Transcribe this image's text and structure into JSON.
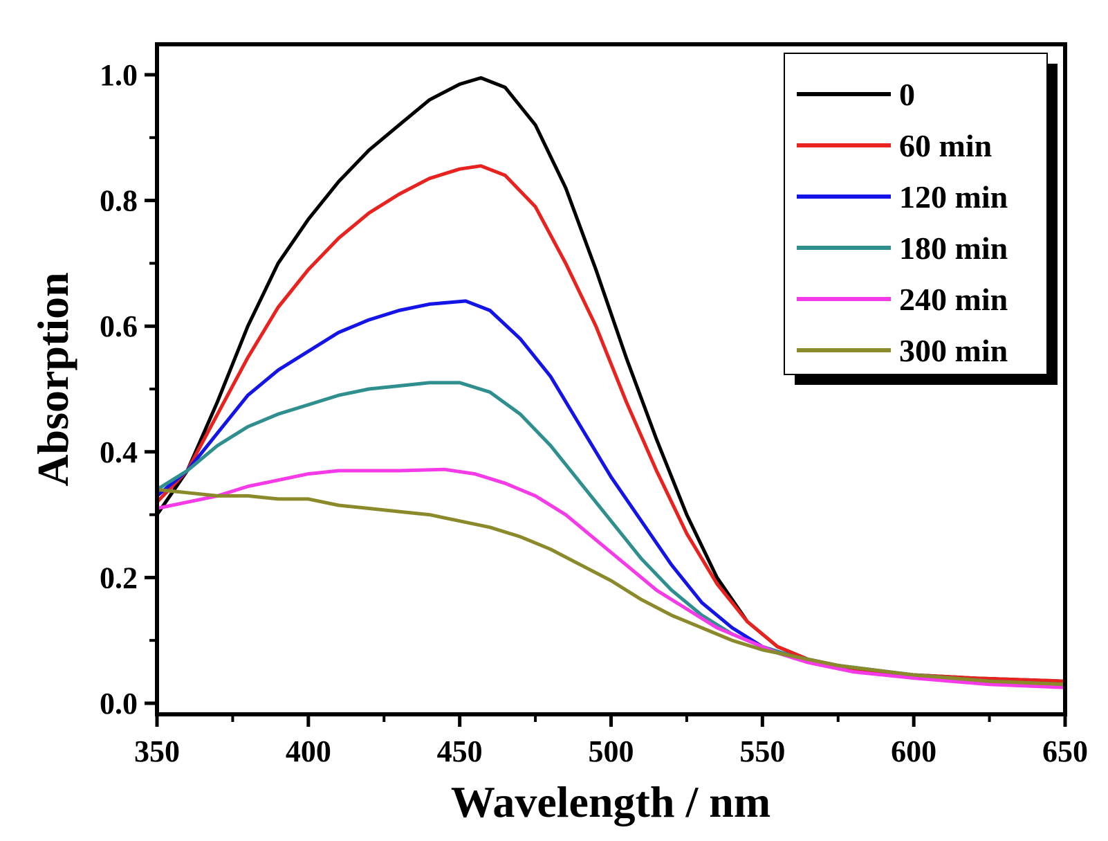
{
  "chart_data": {
    "type": "line",
    "title": "",
    "xlabel": "Wavelength / nm",
    "ylabel": "Absorption",
    "xlim": [
      350,
      650
    ],
    "ylim": [
      0.0,
      1.0
    ],
    "x_ticks": [
      350,
      400,
      450,
      500,
      550,
      600,
      650
    ],
    "x_tick_labels": [
      "350",
      "400",
      "450",
      "500",
      "550",
      "600",
      "650"
    ],
    "y_ticks": [
      0.0,
      0.2,
      0.4,
      0.6,
      0.8,
      1.0
    ],
    "y_tick_labels": [
      "0.0",
      "0.2",
      "0.4",
      "0.6",
      "0.8",
      "1.0"
    ],
    "grid": false,
    "legend_position": "top-right",
    "series": [
      {
        "name": "0",
        "color": "#000000",
        "points": [
          [
            350,
            0.3
          ],
          [
            360,
            0.37
          ],
          [
            370,
            0.48
          ],
          [
            380,
            0.6
          ],
          [
            390,
            0.7
          ],
          [
            400,
            0.77
          ],
          [
            410,
            0.83
          ],
          [
            420,
            0.88
          ],
          [
            430,
            0.92
          ],
          [
            440,
            0.96
          ],
          [
            450,
            0.985
          ],
          [
            457,
            0.995
          ],
          [
            465,
            0.98
          ],
          [
            475,
            0.92
          ],
          [
            485,
            0.82
          ],
          [
            495,
            0.69
          ],
          [
            505,
            0.55
          ],
          [
            515,
            0.42
          ],
          [
            525,
            0.3
          ],
          [
            535,
            0.2
          ],
          [
            545,
            0.13
          ],
          [
            555,
            0.09
          ],
          [
            565,
            0.07
          ],
          [
            580,
            0.055
          ],
          [
            600,
            0.045
          ],
          [
            620,
            0.04
          ],
          [
            650,
            0.035
          ]
        ]
      },
      {
        "name": "60 min",
        "color": "#e8231f",
        "points": [
          [
            350,
            0.32
          ],
          [
            360,
            0.37
          ],
          [
            370,
            0.46
          ],
          [
            380,
            0.55
          ],
          [
            390,
            0.63
          ],
          [
            400,
            0.69
          ],
          [
            410,
            0.74
          ],
          [
            420,
            0.78
          ],
          [
            430,
            0.81
          ],
          [
            440,
            0.835
          ],
          [
            450,
            0.85
          ],
          [
            457,
            0.855
          ],
          [
            465,
            0.84
          ],
          [
            475,
            0.79
          ],
          [
            485,
            0.7
          ],
          [
            495,
            0.6
          ],
          [
            505,
            0.48
          ],
          [
            515,
            0.37
          ],
          [
            525,
            0.27
          ],
          [
            535,
            0.19
          ],
          [
            545,
            0.13
          ],
          [
            555,
            0.09
          ],
          [
            565,
            0.07
          ],
          [
            580,
            0.055
          ],
          [
            600,
            0.045
          ],
          [
            620,
            0.04
          ],
          [
            650,
            0.035
          ]
        ]
      },
      {
        "name": "120 min",
        "color": "#1414e6",
        "points": [
          [
            350,
            0.33
          ],
          [
            360,
            0.37
          ],
          [
            370,
            0.43
          ],
          [
            380,
            0.49
          ],
          [
            390,
            0.53
          ],
          [
            400,
            0.56
          ],
          [
            410,
            0.59
          ],
          [
            420,
            0.61
          ],
          [
            430,
            0.625
          ],
          [
            440,
            0.635
          ],
          [
            452,
            0.64
          ],
          [
            460,
            0.625
          ],
          [
            470,
            0.58
          ],
          [
            480,
            0.52
          ],
          [
            490,
            0.44
          ],
          [
            500,
            0.36
          ],
          [
            510,
            0.29
          ],
          [
            520,
            0.22
          ],
          [
            530,
            0.16
          ],
          [
            540,
            0.12
          ],
          [
            550,
            0.09
          ],
          [
            560,
            0.075
          ],
          [
            575,
            0.06
          ],
          [
            600,
            0.045
          ],
          [
            625,
            0.035
          ],
          [
            650,
            0.03
          ]
        ]
      },
      {
        "name": "180 min",
        "color": "#2f8f8f",
        "points": [
          [
            350,
            0.34
          ],
          [
            360,
            0.37
          ],
          [
            370,
            0.41
          ],
          [
            380,
            0.44
          ],
          [
            390,
            0.46
          ],
          [
            400,
            0.475
          ],
          [
            410,
            0.49
          ],
          [
            420,
            0.5
          ],
          [
            430,
            0.505
          ],
          [
            440,
            0.51
          ],
          [
            450,
            0.51
          ],
          [
            460,
            0.495
          ],
          [
            470,
            0.46
          ],
          [
            480,
            0.41
          ],
          [
            490,
            0.35
          ],
          [
            500,
            0.29
          ],
          [
            510,
            0.23
          ],
          [
            520,
            0.18
          ],
          [
            530,
            0.14
          ],
          [
            540,
            0.11
          ],
          [
            550,
            0.09
          ],
          [
            560,
            0.075
          ],
          [
            575,
            0.06
          ],
          [
            600,
            0.045
          ],
          [
            625,
            0.035
          ],
          [
            650,
            0.03
          ]
        ]
      },
      {
        "name": "240 min",
        "color": "#f53ae8",
        "points": [
          [
            350,
            0.31
          ],
          [
            360,
            0.32
          ],
          [
            370,
            0.33
          ],
          [
            380,
            0.345
          ],
          [
            390,
            0.355
          ],
          [
            400,
            0.365
          ],
          [
            410,
            0.37
          ],
          [
            420,
            0.37
          ],
          [
            430,
            0.37
          ],
          [
            445,
            0.372
          ],
          [
            455,
            0.365
          ],
          [
            465,
            0.35
          ],
          [
            475,
            0.33
          ],
          [
            485,
            0.3
          ],
          [
            495,
            0.26
          ],
          [
            505,
            0.22
          ],
          [
            515,
            0.18
          ],
          [
            525,
            0.15
          ],
          [
            535,
            0.12
          ],
          [
            545,
            0.1
          ],
          [
            555,
            0.08
          ],
          [
            565,
            0.065
          ],
          [
            580,
            0.05
          ],
          [
            600,
            0.04
          ],
          [
            625,
            0.03
          ],
          [
            650,
            0.025
          ]
        ]
      },
      {
        "name": "300 min",
        "color": "#8a8a2a",
        "points": [
          [
            350,
            0.34
          ],
          [
            360,
            0.335
          ],
          [
            370,
            0.33
          ],
          [
            380,
            0.33
          ],
          [
            390,
            0.325
          ],
          [
            400,
            0.325
          ],
          [
            410,
            0.315
          ],
          [
            420,
            0.31
          ],
          [
            430,
            0.305
          ],
          [
            440,
            0.3
          ],
          [
            450,
            0.29
          ],
          [
            460,
            0.28
          ],
          [
            470,
            0.265
          ],
          [
            480,
            0.245
          ],
          [
            490,
            0.22
          ],
          [
            500,
            0.195
          ],
          [
            510,
            0.165
          ],
          [
            520,
            0.14
          ],
          [
            530,
            0.12
          ],
          [
            540,
            0.1
          ],
          [
            550,
            0.085
          ],
          [
            560,
            0.075
          ],
          [
            575,
            0.06
          ],
          [
            600,
            0.045
          ],
          [
            625,
            0.035
          ],
          [
            650,
            0.03
          ]
        ]
      }
    ]
  }
}
